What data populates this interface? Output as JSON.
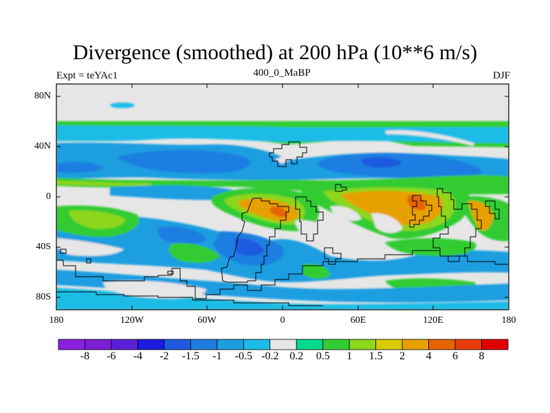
{
  "figure": {
    "title": "Divergence (smoothed) at 200 hPa (10**6 m/s)",
    "left_label": "Expt = teYAc1",
    "center_label": "400_0_MaBP",
    "right_label": "DJF"
  },
  "axes": {
    "lat_labels": [
      "80N",
      "40N",
      "0",
      "40S",
      "80S"
    ],
    "lon_labels": [
      "180",
      "120W",
      "60W",
      "0",
      "60E",
      "120E",
      "180"
    ]
  },
  "colorbar": {
    "labels": [
      "-8",
      "-6",
      "-4",
      "-2",
      "-1.5",
      "-1",
      "-0.5",
      "-0.2",
      "0.2",
      "0.5",
      "1",
      "1.5",
      "2",
      "4",
      "6",
      "8"
    ],
    "colors": [
      "#8a1fe0",
      "#7a1fd6",
      "#5a1fd6",
      "#1c1ce0",
      "#1e5adf",
      "#1e7ee0",
      "#1e9ee0",
      "#1cbce6",
      "#e6e6e6",
      "#00d98c",
      "#33cc33",
      "#8cd61c",
      "#d9cc00",
      "#e6a000",
      "#e66400",
      "#e63c0a",
      "#e00000"
    ]
  },
  "map": {
    "background": "#e6e6e6",
    "palette": {
      "cyan": "#1cbce6",
      "sky": "#1e9ee0",
      "blue": "#1e7ee0",
      "deep": "#1e5adf",
      "lime": "#33cc33",
      "green": "#00d98c",
      "yellow": "#8cd61c",
      "orange": "#e6a000",
      "red": "#e66400"
    }
  }
}
